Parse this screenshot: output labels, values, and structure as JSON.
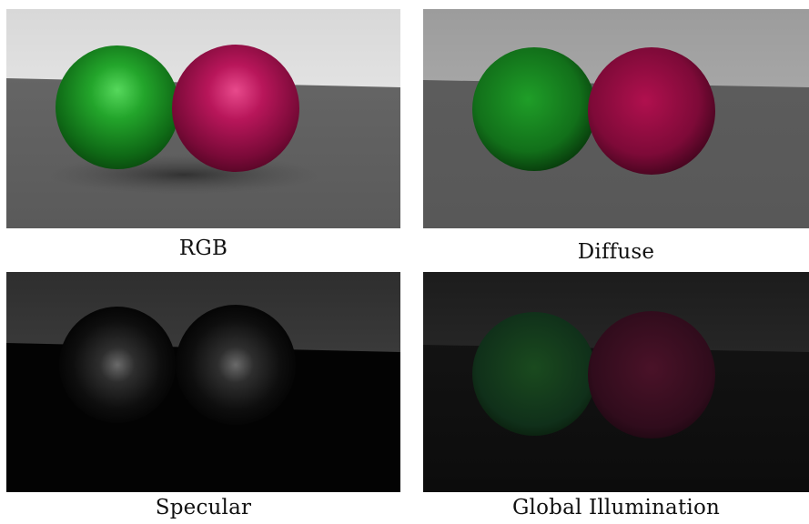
{
  "panels": [
    {
      "id": "rgb",
      "caption": "RGB"
    },
    {
      "id": "diffuse",
      "caption": "Diffuse"
    },
    {
      "id": "specular",
      "caption": "Specular"
    },
    {
      "id": "gi",
      "caption": "Global Illumination"
    }
  ],
  "colors": {
    "green_sphere": "#1e9a28",
    "magenta_sphere": "#b0104e",
    "background": "#ffffff"
  }
}
